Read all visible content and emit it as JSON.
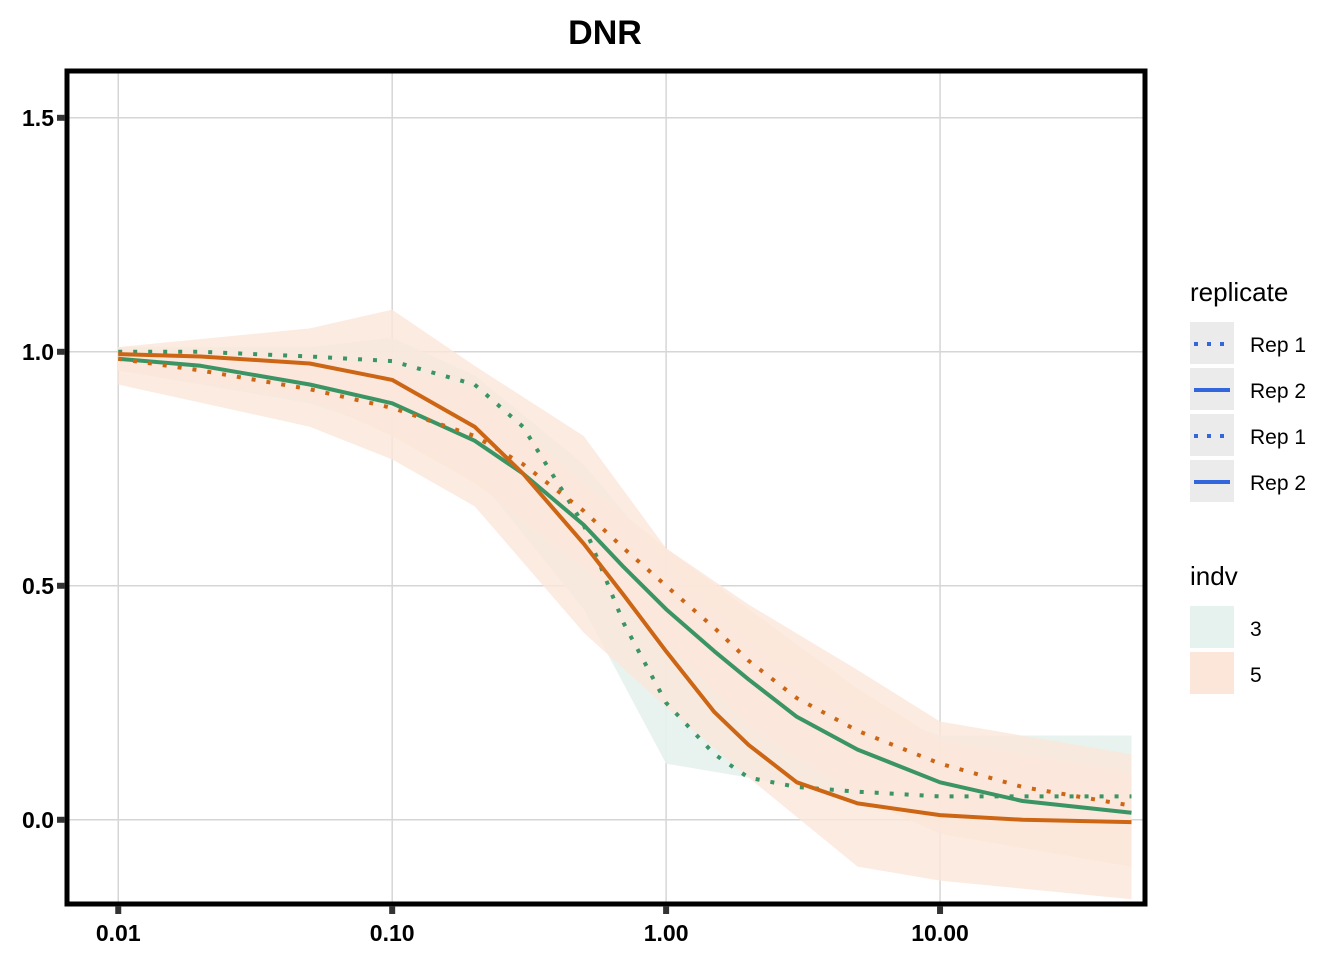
{
  "chart_data": {
    "type": "line",
    "title": "DNR",
    "xlabel": "",
    "ylabel": "",
    "x_scale": "log10",
    "x_ticks": [
      "0.01",
      "0.10",
      "1.00",
      "10.00"
    ],
    "x_tick_values": [
      0.01,
      0.1,
      1,
      10
    ],
    "y_ticks": [
      "0.0",
      "0.5",
      "1.0",
      "1.5"
    ],
    "y_tick_values": [
      0,
      0.5,
      1.0,
      1.5
    ],
    "xlim": [
      0.0065,
      56
    ],
    "ylim": [
      -0.18,
      1.6
    ],
    "grid": true,
    "legend_placement": "right",
    "legend": {
      "replicate": {
        "title": "replicate",
        "entries": [
          {
            "label": "Rep 1",
            "style": "dotted"
          },
          {
            "label": "Rep 2",
            "style": "solid"
          },
          {
            "label": "Rep 1",
            "style": "dotted"
          },
          {
            "label": "Rep 2",
            "style": "solid"
          }
        ],
        "key_color": "#3366dd"
      },
      "indv": {
        "title": "indv",
        "entries": [
          {
            "label": "3",
            "fill": "#e6f2ee"
          },
          {
            "label": "5",
            "fill": "#fbe6d9"
          }
        ]
      }
    },
    "colors": {
      "indv_3": "#3a9464",
      "indv_5": "#cc6615"
    },
    "series": [
      {
        "indv": "3",
        "replicate": "Rep 1",
        "style": "dotted",
        "color": "#3a9464",
        "x": [
          0.01,
          0.02,
          0.05,
          0.1,
          0.2,
          0.3,
          0.5,
          0.7,
          1.0,
          1.5,
          2.0,
          3.0,
          5.0,
          10.0,
          20.0,
          50.0
        ],
        "y": [
          1.0,
          1.0,
          0.99,
          0.98,
          0.93,
          0.84,
          0.63,
          0.42,
          0.25,
          0.14,
          0.09,
          0.07,
          0.06,
          0.05,
          0.05,
          0.05
        ]
      },
      {
        "indv": "3",
        "replicate": "Rep 2",
        "style": "solid",
        "color": "#3a9464",
        "x": [
          0.01,
          0.02,
          0.05,
          0.1,
          0.2,
          0.3,
          0.5,
          0.7,
          1.0,
          1.5,
          2.0,
          3.0,
          5.0,
          10.0,
          20.0,
          50.0
        ],
        "y": [
          0.985,
          0.97,
          0.93,
          0.89,
          0.81,
          0.74,
          0.63,
          0.54,
          0.45,
          0.36,
          0.3,
          0.22,
          0.15,
          0.08,
          0.04,
          0.015
        ]
      },
      {
        "indv": "5",
        "replicate": "Rep 1",
        "style": "dotted",
        "color": "#cc6615",
        "x": [
          0.01,
          0.02,
          0.05,
          0.1,
          0.2,
          0.3,
          0.5,
          0.7,
          1.0,
          1.5,
          2.0,
          3.0,
          5.0,
          10.0,
          20.0,
          50.0
        ],
        "y": [
          0.985,
          0.96,
          0.92,
          0.88,
          0.82,
          0.76,
          0.66,
          0.58,
          0.5,
          0.41,
          0.34,
          0.26,
          0.19,
          0.12,
          0.07,
          0.03
        ]
      },
      {
        "indv": "5",
        "replicate": "Rep 2",
        "style": "solid",
        "color": "#cc6615",
        "x": [
          0.01,
          0.02,
          0.05,
          0.1,
          0.2,
          0.3,
          0.5,
          0.7,
          1.0,
          1.5,
          2.0,
          3.0,
          5.0,
          10.0,
          20.0,
          50.0
        ],
        "y": [
          0.995,
          0.99,
          0.975,
          0.94,
          0.84,
          0.74,
          0.59,
          0.48,
          0.36,
          0.23,
          0.16,
          0.08,
          0.035,
          0.01,
          0.0,
          -0.005
        ]
      }
    ],
    "bands": [
      {
        "indv": "3",
        "fill": "#e6f2ee",
        "opacity": 0.9,
        "x": [
          0.01,
          0.05,
          0.1,
          0.2,
          0.5,
          1.0,
          2.0,
          5.0,
          10.0,
          50.0
        ],
        "lower": [
          0.97,
          0.92,
          0.87,
          0.74,
          0.45,
          0.12,
          0.09,
          0.04,
          0.02,
          -0.01
        ],
        "upper": [
          1.01,
          1.01,
          1.03,
          0.95,
          0.76,
          0.55,
          0.38,
          0.24,
          0.18,
          0.18
        ]
      },
      {
        "indv": "3",
        "fill": "#e6f2ee",
        "opacity": 0.9,
        "x": [
          0.01,
          0.05,
          0.1,
          0.2,
          0.5,
          1.0,
          2.0,
          5.0,
          10.0,
          50.0
        ],
        "lower": [
          0.96,
          0.89,
          0.83,
          0.73,
          0.56,
          0.38,
          0.24,
          0.11,
          0.04,
          -0.02
        ],
        "upper": [
          1.0,
          0.97,
          0.94,
          0.88,
          0.7,
          0.52,
          0.36,
          0.2,
          0.12,
          0.05
        ]
      },
      {
        "indv": "5",
        "fill": "#fbe6d9",
        "opacity": 0.8,
        "x": [
          0.01,
          0.05,
          0.1,
          0.2,
          0.5,
          1.0,
          2.0,
          5.0,
          10.0,
          50.0
        ],
        "lower": [
          0.93,
          0.84,
          0.77,
          0.67,
          0.4,
          0.24,
          0.09,
          -0.1,
          -0.13,
          -0.17
        ],
        "upper": [
          1.01,
          1.05,
          1.09,
          0.97,
          0.82,
          0.58,
          0.46,
          0.32,
          0.21,
          0.14
        ]
      },
      {
        "indv": "5",
        "fill": "#fbe6d9",
        "opacity": 0.8,
        "x": [
          0.01,
          0.05,
          0.1,
          0.2,
          0.5,
          1.0,
          2.0,
          5.0,
          10.0,
          50.0
        ],
        "lower": [
          0.96,
          0.9,
          0.82,
          0.72,
          0.54,
          0.38,
          0.2,
          0.05,
          -0.03,
          -0.1
        ],
        "upper": [
          1.0,
          0.99,
          0.97,
          0.92,
          0.72,
          0.58,
          0.45,
          0.28,
          0.17,
          0.1
        ]
      }
    ]
  }
}
